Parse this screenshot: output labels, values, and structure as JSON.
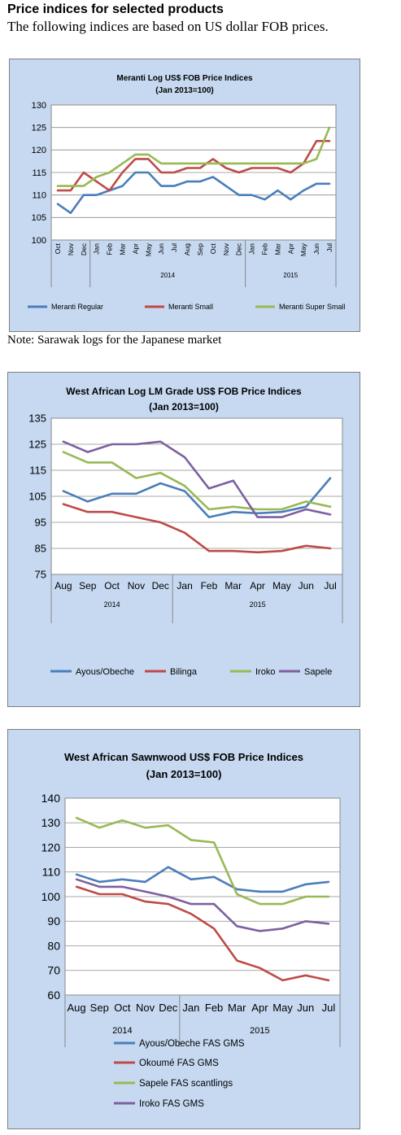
{
  "page": {
    "heading": "Price indices for selected products",
    "subheading": "The following indices are based on US dollar FOB prices.",
    "note": "Note: Sarawak logs for the Japanese market"
  },
  "colors": {
    "panel_bg": "#c6d9f1",
    "plot_bg": "#ffffff",
    "blue": "#4a7ebb",
    "red": "#be4b48",
    "green": "#98b954",
    "purple": "#7d60a0"
  },
  "chart_data": [
    {
      "type": "line",
      "title": "Meranti Log US$ FOB Price Indices",
      "subtitle": "(Jan 2013=100)",
      "categories": [
        "Oct",
        "Nov",
        "Dec",
        "Jan",
        "Feb",
        "Mar",
        "Apr",
        "May",
        "Jun",
        "Jul",
        "Aug",
        "Sep",
        "Oct",
        "Nov",
        "Dec",
        "Jan",
        "Feb",
        "Mar",
        "Apr",
        "May",
        "Jun",
        "Jul"
      ],
      "year_groups": [
        {
          "label": "2014",
          "start": 3,
          "end": 14
        },
        {
          "label": "2015",
          "start": 15,
          "end": 21
        }
      ],
      "ylim": [
        100,
        130
      ],
      "yticks": [
        100,
        105,
        110,
        115,
        120,
        125,
        130
      ],
      "grid": true,
      "legend_position": "bottom",
      "series": [
        {
          "name": "Meranti Regular",
          "color": "#4a7ebb",
          "values": [
            108,
            106,
            110,
            110,
            111,
            112,
            115,
            115,
            112,
            112,
            113,
            113,
            114,
            112,
            110,
            110,
            109,
            111,
            109,
            111,
            112.5,
            112.5
          ]
        },
        {
          "name": "Meranti Small",
          "color": "#be4b48",
          "values": [
            111,
            111,
            115,
            113,
            111,
            115,
            118,
            118,
            115,
            115,
            116,
            116,
            118,
            116,
            115,
            116,
            116,
            116,
            115,
            117,
            122,
            122
          ]
        },
        {
          "name": "Meranti Super Small",
          "color": "#98b954",
          "values": [
            112,
            112,
            112,
            114,
            115,
            117,
            119,
            119,
            117,
            117,
            117,
            117,
            117,
            117,
            117,
            117,
            117,
            117,
            117,
            117,
            118,
            125
          ]
        }
      ]
    },
    {
      "type": "line",
      "title": "West African Log LM Grade US$ FOB Price Indices",
      "subtitle": "(Jan 2013=100)",
      "categories": [
        "Aug",
        "Sep",
        "Oct",
        "Nov",
        "Dec",
        "Jan",
        "Feb",
        "Mar",
        "Apr",
        "May",
        "Jun",
        "Jul"
      ],
      "year_groups": [
        {
          "label": "2014",
          "start": 0,
          "end": 4
        },
        {
          "label": "2015",
          "start": 5,
          "end": 11
        }
      ],
      "ylim": [
        75,
        135
      ],
      "yticks": [
        75,
        85,
        95,
        105,
        115,
        125,
        135
      ],
      "grid": true,
      "legend_position": "bottom",
      "series": [
        {
          "name": "Ayous/Obeche",
          "color": "#4a7ebb",
          "values": [
            107,
            103,
            106,
            106,
            110,
            107,
            97,
            99,
            98.5,
            99,
            101,
            112
          ]
        },
        {
          "name": "Bilinga",
          "color": "#be4b48",
          "values": [
            102,
            99,
            99,
            97,
            95,
            91,
            84,
            84,
            83.5,
            84,
            86,
            85
          ]
        },
        {
          "name": "Iroko",
          "color": "#98b954",
          "values": [
            122,
            118,
            118,
            112,
            114,
            109,
            100,
            101,
            100,
            100,
            103,
            101
          ]
        },
        {
          "name": "Sapele",
          "color": "#7d60a0",
          "values": [
            126,
            122,
            125,
            125,
            126,
            120,
            108,
            111,
            97,
            97,
            100,
            98
          ]
        }
      ]
    },
    {
      "type": "line",
      "title": "West African Sawnwood US$ FOB Price Indices",
      "subtitle": "(Jan 2013=100)",
      "categories": [
        "Aug",
        "Sep",
        "Oct",
        "Nov",
        "Dec",
        "Jan",
        "Feb",
        "Mar",
        "Apr",
        "May",
        "Jun",
        "Jul"
      ],
      "year_groups": [
        {
          "label": "2014",
          "start": 0,
          "end": 4
        },
        {
          "label": "2015",
          "start": 5,
          "end": 11
        }
      ],
      "ylim": [
        60,
        140
      ],
      "yticks": [
        60,
        70,
        80,
        90,
        100,
        110,
        120,
        130,
        140
      ],
      "grid": true,
      "legend_position": "bottom",
      "series": [
        {
          "name": "Ayous/Obeche  FAS GMS",
          "color": "#4a7ebb",
          "values": [
            109,
            106,
            107,
            106,
            112,
            107,
            108,
            103,
            102,
            102,
            105,
            106
          ]
        },
        {
          "name": "Okoumé  FAS GMS",
          "color": "#be4b48",
          "values": [
            104,
            101,
            101,
            98,
            97,
            93,
            87,
            74,
            71,
            66,
            68,
            66
          ]
        },
        {
          "name": "Sapele FAS scantlings",
          "color": "#98b954",
          "values": [
            132,
            128,
            131,
            128,
            129,
            123,
            122,
            101,
            97,
            97,
            100,
            100
          ]
        },
        {
          "name": "Iroko FAS GMS",
          "color": "#7d60a0",
          "values": [
            107,
            104,
            104,
            102,
            100,
            97,
            97,
            88,
            86,
            87,
            90,
            89
          ]
        }
      ]
    }
  ]
}
